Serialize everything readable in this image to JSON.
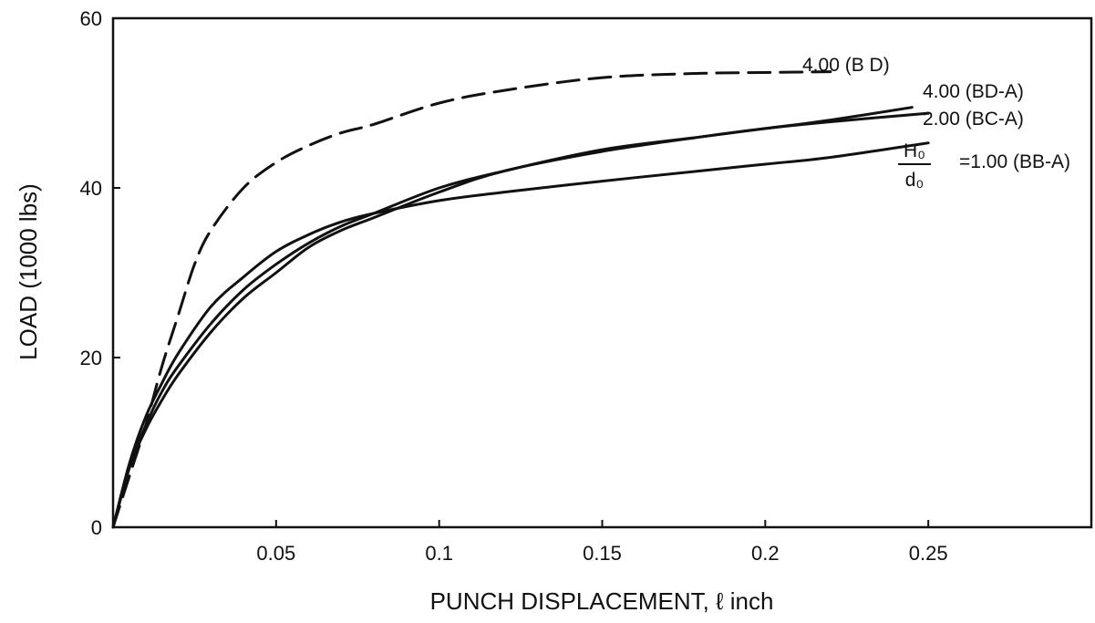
{
  "chart_data": {
    "type": "line",
    "xlabel": "PUNCH DISPLACEMENT, ℓ inch",
    "ylabel": "LOAD (1000 lbs)",
    "xlim": [
      0,
      0.3
    ],
    "ylim": [
      0,
      60
    ],
    "xticks": [
      0.05,
      0.1,
      0.15,
      0.2,
      0.25
    ],
    "xtick_labels": [
      "0.05",
      "0.1",
      "0.15",
      "0.2",
      "0.25"
    ],
    "yticks": [
      0,
      20,
      40,
      60
    ],
    "ytick_labels": [
      "0",
      "20",
      "40",
      "60"
    ],
    "grid": false,
    "legend": "none",
    "series_annotation_prefix": {
      "numerator": "H₀",
      "denominator": "d₀",
      "equals": "="
    },
    "series": [
      {
        "name": "4.00 (B D)",
        "style": "dashed",
        "x": [
          0,
          0.005,
          0.01,
          0.015,
          0.02,
          0.025,
          0.03,
          0.04,
          0.05,
          0.06,
          0.07,
          0.08,
          0.1,
          0.12,
          0.15,
          0.18,
          0.2,
          0.22
        ],
        "y": [
          0,
          6,
          12,
          19,
          25,
          31,
          35,
          40,
          43,
          45,
          46.5,
          47.5,
          50,
          51.5,
          53,
          53.5,
          53.6,
          53.7
        ]
      },
      {
        "name": "4.00 (BD-A)",
        "style": "solid",
        "x": [
          0,
          0.005,
          0.01,
          0.015,
          0.02,
          0.03,
          0.04,
          0.05,
          0.06,
          0.07,
          0.08,
          0.1,
          0.12,
          0.15,
          0.18,
          0.2,
          0.22,
          0.245
        ],
        "y": [
          0,
          7,
          12,
          16,
          19,
          24,
          28,
          31,
          33.5,
          35.5,
          37,
          40,
          42,
          44.5,
          46,
          47,
          48,
          49.5
        ]
      },
      {
        "name": "2.00 (BC-A)",
        "style": "solid",
        "x": [
          0,
          0.005,
          0.01,
          0.015,
          0.02,
          0.03,
          0.04,
          0.05,
          0.06,
          0.07,
          0.08,
          0.1,
          0.12,
          0.15,
          0.18,
          0.2,
          0.22,
          0.25
        ],
        "y": [
          0,
          7,
          11.5,
          15,
          18,
          23,
          27,
          30,
          33,
          35,
          36.5,
          39.5,
          42,
          44.3,
          46,
          47,
          47.8,
          48.8
        ]
      },
      {
        "name": "1.00 (BB-A)",
        "style": "solid",
        "x": [
          0,
          0.005,
          0.01,
          0.015,
          0.02,
          0.03,
          0.04,
          0.05,
          0.06,
          0.07,
          0.08,
          0.1,
          0.12,
          0.15,
          0.18,
          0.2,
          0.22,
          0.25
        ],
        "y": [
          0,
          7.5,
          13,
          17,
          20.5,
          26,
          29.5,
          32.5,
          34.5,
          36,
          37,
          38.5,
          39.5,
          40.8,
          42,
          42.8,
          43.6,
          45.3
        ]
      }
    ]
  }
}
